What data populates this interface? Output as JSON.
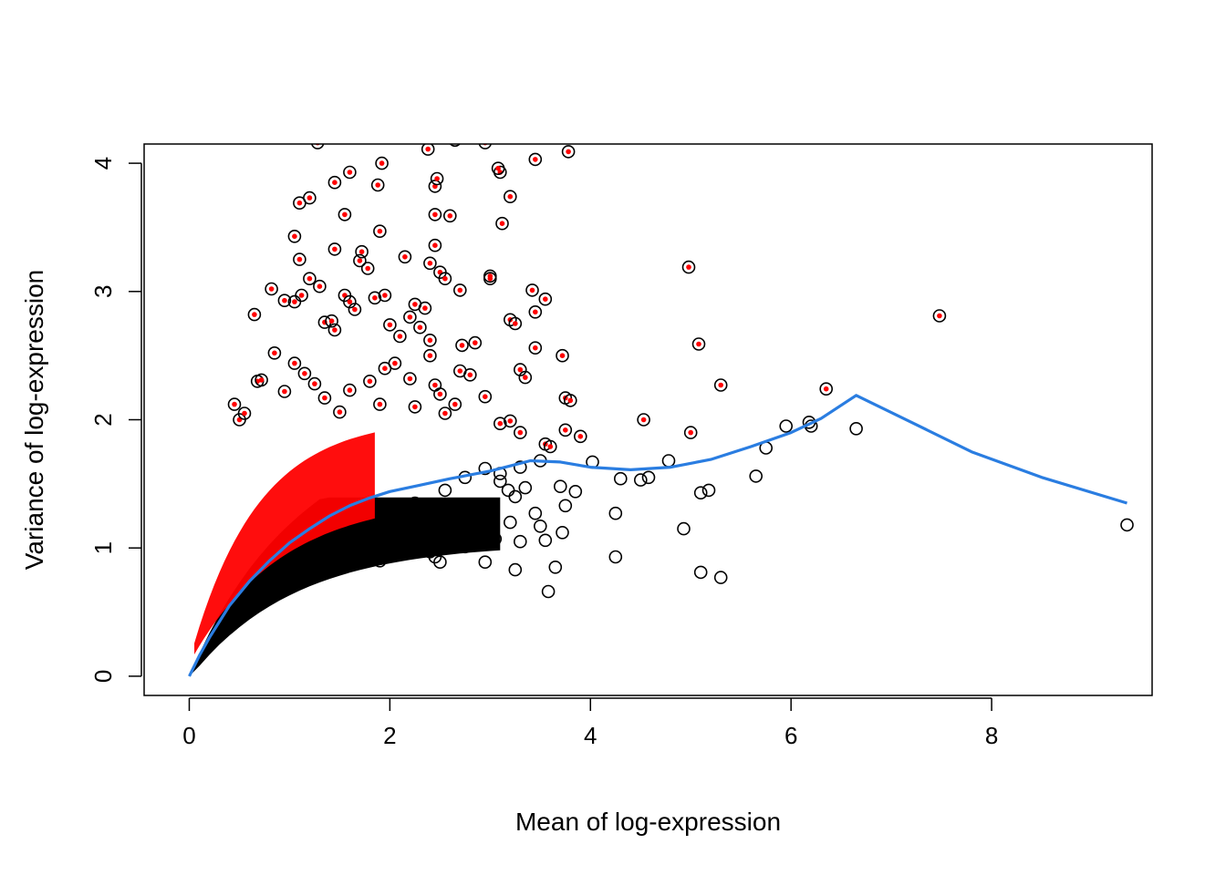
{
  "chart_data": {
    "type": "scatter",
    "title": "",
    "xlabel": "Mean of log-expression",
    "ylabel": "Variance of log-expression",
    "xlim": [
      -0.45,
      9.6
    ],
    "ylim": [
      -0.15,
      4.15
    ],
    "x_ticks": [
      0,
      2,
      4,
      6,
      8
    ],
    "y_ticks": [
      0,
      1,
      2,
      3,
      4
    ],
    "grid": false,
    "legend": "none",
    "colors": {
      "points": "#000000",
      "highlighted_points": "#ff0000",
      "trend_line": "#2a7de1"
    },
    "series": [
      {
        "kind": "highlighted_points",
        "points": [
          [
            0.65,
            2.82
          ],
          [
            0.82,
            3.02
          ],
          [
            1.1,
            3.69
          ],
          [
            1.2,
            3.73
          ],
          [
            1.28,
            4.16
          ],
          [
            1.55,
            3.6
          ],
          [
            1.6,
            3.93
          ],
          [
            1.45,
            3.85
          ],
          [
            1.88,
            3.83
          ],
          [
            1.9,
            3.47
          ],
          [
            1.92,
            4.0
          ],
          [
            2.38,
            4.11
          ],
          [
            2.45,
            3.82
          ],
          [
            2.47,
            3.88
          ],
          [
            2.65,
            4.18
          ],
          [
            2.95,
            4.16
          ],
          [
            3.1,
            3.93
          ],
          [
            3.08,
            3.96
          ],
          [
            3.2,
            3.74
          ],
          [
            3.45,
            4.03
          ],
          [
            3.78,
            4.09
          ],
          [
            3.12,
            3.53
          ],
          [
            2.45,
            3.6
          ],
          [
            2.6,
            3.59
          ],
          [
            1.05,
            3.43
          ],
          [
            1.1,
            3.25
          ],
          [
            1.45,
            3.33
          ],
          [
            1.72,
            3.31
          ],
          [
            1.7,
            3.24
          ],
          [
            1.78,
            3.18
          ],
          [
            2.15,
            3.27
          ],
          [
            2.4,
            3.22
          ],
          [
            2.45,
            3.36
          ],
          [
            2.5,
            3.15
          ],
          [
            2.55,
            3.1
          ],
          [
            2.7,
            3.01
          ],
          [
            3.0,
            3.12
          ],
          [
            3.0,
            3.1
          ],
          [
            3.42,
            3.01
          ],
          [
            3.55,
            2.94
          ],
          [
            4.98,
            3.19
          ],
          [
            7.48,
            2.81
          ],
          [
            5.08,
            2.59
          ],
          [
            5.3,
            2.27
          ],
          [
            6.35,
            2.24
          ],
          [
            4.53,
            2.0
          ],
          [
            5.0,
            1.9
          ],
          [
            3.45,
            2.84
          ],
          [
            3.45,
            2.56
          ],
          [
            3.72,
            2.5
          ],
          [
            3.35,
            2.33
          ],
          [
            3.3,
            2.39
          ],
          [
            3.75,
            2.17
          ],
          [
            3.8,
            2.15
          ],
          [
            3.75,
            1.92
          ],
          [
            3.9,
            1.87
          ],
          [
            3.55,
            1.81
          ],
          [
            3.6,
            1.79
          ],
          [
            3.2,
            1.99
          ],
          [
            3.1,
            1.97
          ],
          [
            3.3,
            1.9
          ],
          [
            2.95,
            2.18
          ],
          [
            2.8,
            2.35
          ],
          [
            2.85,
            2.6
          ],
          [
            2.72,
            2.58
          ],
          [
            2.65,
            2.12
          ],
          [
            2.55,
            2.05
          ],
          [
            2.7,
            2.38
          ],
          [
            3.2,
            2.78
          ],
          [
            3.25,
            2.75
          ],
          [
            0.45,
            2.12
          ],
          [
            0.5,
            2.0
          ],
          [
            0.55,
            2.05
          ],
          [
            0.68,
            2.3
          ],
          [
            0.72,
            2.31
          ],
          [
            0.85,
            2.52
          ],
          [
            0.95,
            2.93
          ],
          [
            1.05,
            2.92
          ],
          [
            1.12,
            2.97
          ],
          [
            1.2,
            3.1
          ],
          [
            1.3,
            3.04
          ],
          [
            1.35,
            2.76
          ],
          [
            1.42,
            2.77
          ],
          [
            1.45,
            2.7
          ],
          [
            1.55,
            2.97
          ],
          [
            1.6,
            2.92
          ],
          [
            1.65,
            2.86
          ],
          [
            1.85,
            2.95
          ],
          [
            1.95,
            2.97
          ],
          [
            2.0,
            2.74
          ],
          [
            2.1,
            2.65
          ],
          [
            2.2,
            2.8
          ],
          [
            2.25,
            2.9
          ],
          [
            2.3,
            2.72
          ],
          [
            2.35,
            2.87
          ],
          [
            2.4,
            2.62
          ],
          [
            0.95,
            2.22
          ],
          [
            1.05,
            2.44
          ],
          [
            1.15,
            2.36
          ],
          [
            1.25,
            2.28
          ],
          [
            1.35,
            2.17
          ],
          [
            1.5,
            2.06
          ],
          [
            1.6,
            2.23
          ],
          [
            1.8,
            2.3
          ],
          [
            1.95,
            2.4
          ],
          [
            2.05,
            2.44
          ],
          [
            2.2,
            2.32
          ],
          [
            2.4,
            2.5
          ],
          [
            2.45,
            2.27
          ],
          [
            2.5,
            2.2
          ],
          [
            2.25,
            2.1
          ],
          [
            1.9,
            2.12
          ]
        ]
      },
      {
        "kind": "points",
        "points": [
          [
            4.25,
            1.27
          ],
          [
            4.25,
            0.93
          ],
          [
            4.3,
            1.54
          ],
          [
            4.5,
            1.53
          ],
          [
            4.58,
            1.55
          ],
          [
            4.78,
            1.68
          ],
          [
            4.93,
            1.15
          ],
          [
            5.1,
            0.81
          ],
          [
            5.1,
            1.43
          ],
          [
            5.18,
            1.45
          ],
          [
            5.3,
            0.77
          ],
          [
            5.65,
            1.56
          ],
          [
            5.75,
            1.78
          ],
          [
            5.95,
            1.95
          ],
          [
            6.18,
            1.98
          ],
          [
            6.2,
            1.95
          ],
          [
            6.65,
            1.93
          ],
          [
            9.35,
            1.18
          ],
          [
            3.58,
            0.66
          ],
          [
            3.65,
            0.85
          ],
          [
            3.45,
            1.27
          ],
          [
            3.5,
            1.17
          ],
          [
            3.55,
            1.06
          ],
          [
            3.72,
            1.12
          ],
          [
            3.75,
            1.33
          ],
          [
            3.7,
            1.48
          ],
          [
            3.85,
            1.44
          ],
          [
            4.02,
            1.67
          ],
          [
            3.5,
            1.68
          ],
          [
            3.3,
            1.05
          ],
          [
            3.25,
            0.83
          ],
          [
            2.95,
            0.89
          ],
          [
            3.05,
            1.07
          ],
          [
            3.2,
            1.2
          ],
          [
            3.35,
            1.47
          ],
          [
            3.25,
            1.4
          ],
          [
            3.1,
            1.52
          ],
          [
            3.3,
            1.63
          ],
          [
            2.5,
            0.89
          ],
          [
            2.75,
            1.01
          ],
          [
            2.85,
            1.17
          ],
          [
            2.9,
            1.29
          ],
          [
            2.65,
            1.21
          ],
          [
            2.4,
            0.97
          ],
          [
            2.45,
            0.93
          ],
          [
            2.2,
            1.03
          ],
          [
            1.9,
            0.9
          ],
          [
            1.75,
            0.98
          ],
          [
            2.0,
            1.1
          ],
          [
            2.1,
            1.2
          ],
          [
            2.25,
            1.35
          ],
          [
            2.55,
            1.45
          ],
          [
            2.75,
            1.55
          ],
          [
            2.95,
            1.62
          ],
          [
            3.1,
            1.58
          ],
          [
            3.18,
            1.45
          ],
          [
            1.5,
            0.95
          ],
          [
            1.3,
            0.9
          ]
        ]
      }
    ],
    "trend_line": [
      [
        0.0,
        0.0
      ],
      [
        0.1,
        0.16
      ],
      [
        0.2,
        0.3
      ],
      [
        0.4,
        0.55
      ],
      [
        0.6,
        0.74
      ],
      [
        0.8,
        0.9
      ],
      [
        1.0,
        1.04
      ],
      [
        1.2,
        1.15
      ],
      [
        1.4,
        1.25
      ],
      [
        1.6,
        1.33
      ],
      [
        1.8,
        1.39
      ],
      [
        2.0,
        1.44
      ],
      [
        2.3,
        1.49
      ],
      [
        2.6,
        1.54
      ],
      [
        3.0,
        1.6
      ],
      [
        3.4,
        1.68
      ],
      [
        3.7,
        1.67
      ],
      [
        4.0,
        1.63
      ],
      [
        4.4,
        1.61
      ],
      [
        4.8,
        1.63
      ],
      [
        5.2,
        1.69
      ],
      [
        5.6,
        1.79
      ],
      [
        6.0,
        1.9
      ],
      [
        6.3,
        2.01
      ],
      [
        6.65,
        2.19
      ],
      [
        7.2,
        1.98
      ],
      [
        7.8,
        1.75
      ],
      [
        8.5,
        1.55
      ],
      [
        9.35,
        1.35
      ]
    ]
  }
}
